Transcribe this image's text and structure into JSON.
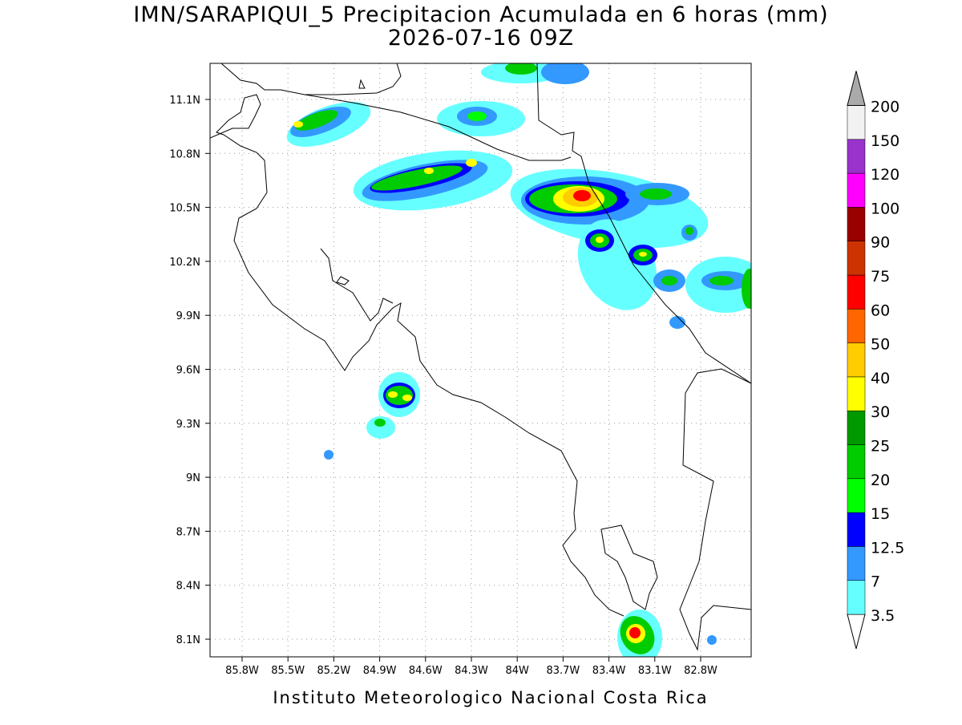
{
  "title": "IMN/SARAPIQUI_5 Precipitacion Acumulada en 6 horas (mm)",
  "subtitle": "2026-07-16 09Z",
  "footer": "Instituto Meteorologico Nacional Costa Rica",
  "map": {
    "lat_labels": [
      "11.1N",
      "10.8N",
      "10.5N",
      "10.2N",
      "9.9N",
      "9.6N",
      "9.3N",
      "9N",
      "8.7N",
      "8.4N",
      "8.1N"
    ],
    "lon_labels": [
      "85.8W",
      "85.5W",
      "85.2W",
      "84.9W",
      "84.6W",
      "84.3W",
      "84W",
      "83.7W",
      "83.4W",
      "83.1W",
      "82.8W"
    ]
  },
  "colorbar": {
    "levels": [
      3.5,
      7,
      12.5,
      15,
      20,
      25,
      30,
      40,
      50,
      60,
      75,
      90,
      100,
      120,
      150,
      200
    ],
    "colors": [
      "#ffffff",
      "#66ffff",
      "#3399ff",
      "#0000ff",
      "#00ff00",
      "#00cc00",
      "#009900",
      "#ffff00",
      "#ffcc00",
      "#ff6600",
      "#ff0000",
      "#cc3300",
      "#990000",
      "#ff00ff",
      "#9933cc",
      "#f2f2f2",
      "#aaaaaa"
    ]
  }
}
